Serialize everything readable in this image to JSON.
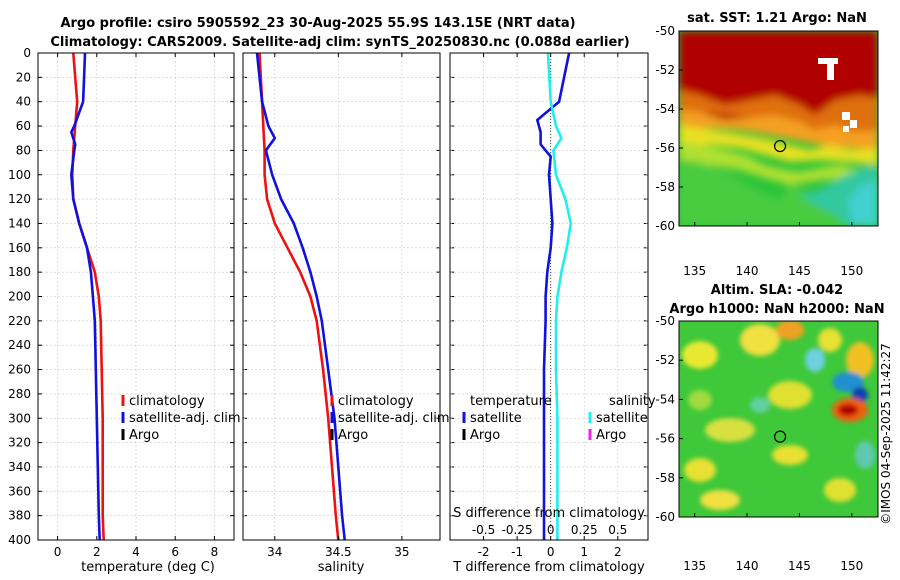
{
  "title_line1": "Argo profile: csiro 5905592_23 30-Aug-2025 55.9S 143.15E (NRT data)",
  "title_line2": "Climatology: CARS2009. Satellite-adj clim: synTS_20250830.nc (0.088d earlier)",
  "colors": {
    "clim": "#ee1111",
    "sat": "#1111dd",
    "argo": "#000000",
    "sal_sat": "#22eeee",
    "sal_argo": "#ee22ee"
  },
  "chart_data": [
    {
      "type": "line",
      "xlabel": "temperature (deg C)",
      "xlim": [
        -1,
        9
      ],
      "xticks": [
        0,
        2,
        4,
        6,
        8
      ],
      "ylim": [
        0,
        400
      ],
      "yticks": [
        0,
        20,
        40,
        60,
        80,
        100,
        120,
        140,
        160,
        180,
        200,
        220,
        240,
        260,
        280,
        300,
        320,
        340,
        360,
        380,
        400
      ],
      "legend": {
        "position": "lower-left",
        "items": [
          "climatology",
          "satellite-adj. clim",
          "Argo"
        ]
      },
      "series": [
        {
          "name": "climatology",
          "color": "clim",
          "depth": [
            0,
            20,
            40,
            60,
            80,
            100,
            120,
            140,
            160,
            180,
            200,
            220,
            260,
            300,
            340,
            380,
            400
          ],
          "values": [
            0.8,
            0.9,
            1.0,
            0.9,
            0.8,
            0.75,
            0.8,
            1.1,
            1.5,
            1.9,
            2.1,
            2.2,
            2.25,
            2.3,
            2.3,
            2.3,
            2.35
          ]
        },
        {
          "name": "satellite-adj. clim",
          "color": "sat",
          "depth": [
            0,
            20,
            40,
            60,
            65,
            75,
            80,
            100,
            120,
            140,
            160,
            180,
            200,
            220,
            260,
            300,
            340,
            380,
            400
          ],
          "values": [
            1.4,
            1.35,
            1.3,
            0.85,
            0.7,
            0.9,
            0.85,
            0.7,
            0.8,
            1.1,
            1.5,
            1.7,
            1.8,
            1.9,
            1.95,
            2.0,
            2.05,
            2.1,
            2.15
          ]
        }
      ]
    },
    {
      "type": "line",
      "xlabel": "salinity",
      "xlim": [
        33.75,
        35.3
      ],
      "xticks": [
        34,
        34.5,
        35
      ],
      "ylim": [
        0,
        400
      ],
      "legend": {
        "position": "lower-left",
        "items": [
          "climatology",
          "satellite-adj. clim",
          "Argo"
        ]
      },
      "series": [
        {
          "name": "climatology",
          "color": "clim",
          "depth": [
            0,
            20,
            40,
            60,
            80,
            100,
            120,
            140,
            160,
            180,
            200,
            220,
            260,
            300,
            340,
            380,
            400
          ],
          "values": [
            33.88,
            33.89,
            33.9,
            33.91,
            33.92,
            33.92,
            33.94,
            34.0,
            34.1,
            34.2,
            34.28,
            34.33,
            34.38,
            34.42,
            34.45,
            34.48,
            34.5
          ]
        },
        {
          "name": "satellite-adj. clim",
          "color": "sat",
          "depth": [
            0,
            20,
            40,
            60,
            70,
            80,
            100,
            120,
            140,
            160,
            180,
            200,
            220,
            260,
            300,
            340,
            380,
            400
          ],
          "values": [
            33.86,
            33.88,
            33.9,
            33.95,
            34.0,
            33.93,
            33.98,
            34.05,
            34.15,
            34.22,
            34.28,
            34.33,
            34.37,
            34.42,
            34.47,
            34.5,
            34.53,
            34.55
          ]
        }
      ]
    },
    {
      "type": "line",
      "xlabel": "T difference from climatology",
      "xlim": [
        -3,
        2.9
      ],
      "xticks": [
        -2,
        -1,
        0,
        1,
        2
      ],
      "top_xlabel": "S difference from climatology",
      "top_xlim": [
        -0.75,
        0.725
      ],
      "top_xticks": [
        "-0.5",
        "-0.25",
        "0",
        "0.25",
        "0.5"
      ],
      "ylim": [
        0,
        400
      ],
      "legend_temperature": {
        "header": "temperature",
        "items": [
          "satellite",
          "Argo"
        ]
      },
      "legend_salinity": {
        "header": "salinity",
        "items": [
          "satellite",
          "Argo"
        ]
      },
      "series": [
        {
          "name": "temperature satellite",
          "color": "sat",
          "depth": [
            0,
            20,
            40,
            55,
            65,
            75,
            80,
            85,
            100,
            120,
            140,
            160,
            180,
            200,
            220,
            260,
            300,
            340,
            380,
            400
          ],
          "values": [
            0.55,
            0.4,
            0.25,
            -0.4,
            -0.3,
            -0.3,
            -0.15,
            0.0,
            -0.05,
            0.0,
            0.05,
            0.0,
            -0.1,
            -0.15,
            -0.15,
            -0.2,
            -0.2,
            -0.2,
            -0.2,
            -0.2
          ]
        },
        {
          "name": "salinity satellite",
          "color": "sal_sat",
          "depth": [
            0,
            20,
            40,
            60,
            70,
            80,
            100,
            120,
            140,
            160,
            180,
            200,
            220,
            260,
            300,
            340,
            380,
            400
          ],
          "values": [
            -0.02,
            -0.01,
            0.0,
            0.04,
            0.08,
            0.02,
            0.04,
            0.11,
            0.15,
            0.12,
            0.08,
            0.05,
            0.04,
            0.04,
            0.05,
            0.05,
            0.05,
            0.05
          ]
        }
      ]
    }
  ],
  "maps": [
    {
      "title": "sat. SST: 1.21 Argo: NaN",
      "xticks": [
        "135",
        "140",
        "145",
        "150"
      ],
      "yticks": [
        "-50",
        "-52",
        "-54",
        "-56",
        "-58",
        "-60"
      ],
      "marker": {
        "lon": 143.15,
        "lat": -55.9
      }
    },
    {
      "title_line1": "Altim. SLA: -0.042",
      "title_line2": "Argo h1000: NaN h2000: NaN",
      "xticks": [
        "135",
        "140",
        "145",
        "150"
      ],
      "yticks": [
        "-50",
        "-52",
        "-54",
        "-56",
        "-58",
        "-60"
      ],
      "marker": {
        "lon": 143.15,
        "lat": -55.9
      }
    }
  ],
  "footer": "©IMOS 04-Sep-2025 11:42:27"
}
